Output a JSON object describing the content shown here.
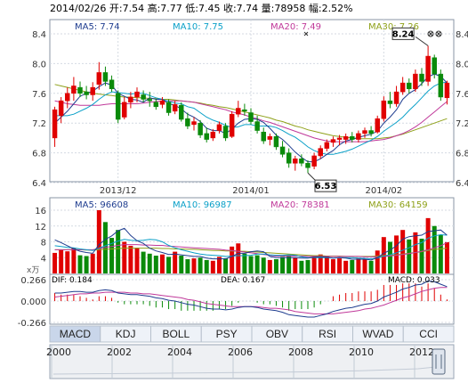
{
  "header": {
    "date": "2014/02/26",
    "quote_text": "2014/02/26 开:7.54 高:7.77 低:7.45 收:7.74 量:78958 幅:2.52%"
  },
  "price_panel": {
    "ma_labels": [
      {
        "text": "MA5: 7.74",
        "color": "#1f3d8f"
      },
      {
        "text": "MA10: 7.75",
        "color": "#0aa0c8"
      },
      {
        "text": "MA20: 7.49",
        "color": "#c0399a"
      },
      {
        "text": "MA30: 7.26",
        "color": "#8fa11a"
      }
    ],
    "y_ticks": [
      "8.4",
      "8.0",
      "7.6",
      "7.2",
      "6.8",
      "6.4"
    ],
    "y_values": [
      8.4,
      8.0,
      7.6,
      7.2,
      6.8,
      6.4
    ],
    "x_ticks": [
      "2013/12",
      "2014/01",
      "2014/02"
    ],
    "high_label": "8.24",
    "low_label": "6.53"
  },
  "volume_panel": {
    "ma_labels": [
      {
        "text": "MA5: 96608",
        "color": "#1f3d8f"
      },
      {
        "text": "MA10: 96987",
        "color": "#0aa0c8"
      },
      {
        "text": "MA20: 78381",
        "color": "#c0399a"
      },
      {
        "text": "MA30: 64159",
        "color": "#8fa11a"
      }
    ],
    "y_ticks": [
      "16",
      "12",
      "8",
      "4"
    ],
    "unit": "x万"
  },
  "macd_panel": {
    "dif_label": "DIF: 0.184",
    "dea_label": "DEA: 0.167",
    "macd_label": "MACD: 0.033",
    "y_ticks": [
      "0.266",
      "0.000",
      "-0.266"
    ]
  },
  "tabs": [
    "MACD",
    "KDJ",
    "BOLL",
    "PSY",
    "OBV",
    "RSI",
    "WVAD",
    "CCI"
  ],
  "active_tab": "MACD",
  "timeline": {
    "years": [
      "2000",
      "2002",
      "2004",
      "2006",
      "2008",
      "2010",
      "2012"
    ]
  },
  "colors": {
    "up": "#e00000",
    "down": "#0a8a0a",
    "ma5": "#1f3d8f",
    "ma10": "#0aa0c8",
    "ma20": "#c0399a",
    "ma30": "#8fa11a"
  },
  "chart_data": {
    "type": "candlestick",
    "candles": [
      {
        "o": 7.0,
        "h": 7.42,
        "l": 6.88,
        "c": 7.38
      },
      {
        "o": 7.3,
        "h": 7.55,
        "l": 7.2,
        "c": 7.5
      },
      {
        "o": 7.5,
        "h": 7.68,
        "l": 7.4,
        "c": 7.6
      },
      {
        "o": 7.6,
        "h": 7.82,
        "l": 7.5,
        "c": 7.7
      },
      {
        "o": 7.68,
        "h": 7.76,
        "l": 7.55,
        "c": 7.6
      },
      {
        "o": 7.62,
        "h": 7.7,
        "l": 7.52,
        "c": 7.58
      },
      {
        "o": 7.58,
        "h": 7.75,
        "l": 7.5,
        "c": 7.68
      },
      {
        "o": 7.72,
        "h": 8.02,
        "l": 7.65,
        "c": 7.88
      },
      {
        "o": 7.88,
        "h": 7.96,
        "l": 7.7,
        "c": 7.76
      },
      {
        "o": 7.78,
        "h": 7.84,
        "l": 7.62,
        "c": 7.66
      },
      {
        "o": 7.6,
        "h": 7.64,
        "l": 7.2,
        "c": 7.25
      },
      {
        "o": 7.28,
        "h": 7.55,
        "l": 7.25,
        "c": 7.48
      },
      {
        "o": 7.48,
        "h": 7.62,
        "l": 7.4,
        "c": 7.55
      },
      {
        "o": 7.55,
        "h": 7.68,
        "l": 7.48,
        "c": 7.62
      },
      {
        "o": 7.58,
        "h": 7.64,
        "l": 7.48,
        "c": 7.52
      },
      {
        "o": 7.52,
        "h": 7.62,
        "l": 7.42,
        "c": 7.5
      },
      {
        "o": 7.48,
        "h": 7.52,
        "l": 7.38,
        "c": 7.42
      },
      {
        "o": 7.45,
        "h": 7.55,
        "l": 7.4,
        "c": 7.5
      },
      {
        "o": 7.48,
        "h": 7.52,
        "l": 7.3,
        "c": 7.34
      },
      {
        "o": 7.36,
        "h": 7.5,
        "l": 7.32,
        "c": 7.45
      },
      {
        "o": 7.44,
        "h": 7.48,
        "l": 7.22,
        "c": 7.25
      },
      {
        "o": 7.26,
        "h": 7.34,
        "l": 7.12,
        "c": 7.16
      },
      {
        "o": 7.18,
        "h": 7.28,
        "l": 7.1,
        "c": 7.22
      },
      {
        "o": 7.2,
        "h": 7.24,
        "l": 7.0,
        "c": 7.04
      },
      {
        "o": 7.06,
        "h": 7.14,
        "l": 6.94,
        "c": 6.98
      },
      {
        "o": 7.0,
        "h": 7.12,
        "l": 6.96,
        "c": 7.08
      },
      {
        "o": 7.1,
        "h": 7.22,
        "l": 7.06,
        "c": 7.18
      },
      {
        "o": 7.16,
        "h": 7.2,
        "l": 6.96,
        "c": 7.0
      },
      {
        "o": 7.02,
        "h": 7.36,
        "l": 7.0,
        "c": 7.32
      },
      {
        "o": 7.32,
        "h": 7.5,
        "l": 7.28,
        "c": 7.4
      },
      {
        "o": 7.38,
        "h": 7.46,
        "l": 7.3,
        "c": 7.36
      },
      {
        "o": 7.34,
        "h": 7.4,
        "l": 7.18,
        "c": 7.22
      },
      {
        "o": 7.22,
        "h": 7.3,
        "l": 7.06,
        "c": 7.1
      },
      {
        "o": 7.08,
        "h": 7.14,
        "l": 6.92,
        "c": 6.96
      },
      {
        "o": 6.98,
        "h": 7.06,
        "l": 6.9,
        "c": 7.02
      },
      {
        "o": 7.02,
        "h": 7.06,
        "l": 6.84,
        "c": 6.88
      },
      {
        "o": 6.88,
        "h": 6.96,
        "l": 6.74,
        "c": 6.78
      },
      {
        "o": 6.8,
        "h": 6.86,
        "l": 6.6,
        "c": 6.66
      },
      {
        "o": 6.66,
        "h": 6.76,
        "l": 6.56,
        "c": 6.72
      },
      {
        "o": 6.72,
        "h": 6.78,
        "l": 6.62,
        "c": 6.66
      },
      {
        "o": 6.66,
        "h": 6.7,
        "l": 6.53,
        "c": 6.6
      },
      {
        "o": 6.62,
        "h": 6.8,
        "l": 6.58,
        "c": 6.76
      },
      {
        "o": 6.76,
        "h": 6.9,
        "l": 6.72,
        "c": 6.86
      },
      {
        "o": 6.86,
        "h": 6.98,
        "l": 6.82,
        "c": 6.94
      },
      {
        "o": 6.94,
        "h": 7.02,
        "l": 6.88,
        "c": 6.98
      },
      {
        "o": 6.98,
        "h": 7.04,
        "l": 6.9,
        "c": 7.0
      },
      {
        "o": 6.98,
        "h": 7.06,
        "l": 6.92,
        "c": 7.02
      },
      {
        "o": 7.02,
        "h": 7.08,
        "l": 6.94,
        "c": 6.98
      },
      {
        "o": 6.98,
        "h": 7.1,
        "l": 6.94,
        "c": 7.06
      },
      {
        "o": 7.06,
        "h": 7.14,
        "l": 7.0,
        "c": 7.1
      },
      {
        "o": 7.1,
        "h": 7.16,
        "l": 7.02,
        "c": 7.06
      },
      {
        "o": 7.08,
        "h": 7.3,
        "l": 7.06,
        "c": 7.26
      },
      {
        "o": 7.26,
        "h": 7.56,
        "l": 7.22,
        "c": 7.5
      },
      {
        "o": 7.5,
        "h": 7.62,
        "l": 7.4,
        "c": 7.46
      },
      {
        "o": 7.46,
        "h": 7.7,
        "l": 7.42,
        "c": 7.62
      },
      {
        "o": 7.62,
        "h": 7.82,
        "l": 7.58,
        "c": 7.74
      },
      {
        "o": 7.74,
        "h": 7.8,
        "l": 7.6,
        "c": 7.66
      },
      {
        "o": 7.66,
        "h": 7.92,
        "l": 7.62,
        "c": 7.86
      },
      {
        "o": 7.86,
        "h": 7.94,
        "l": 7.7,
        "c": 7.76
      },
      {
        "o": 7.76,
        "h": 8.24,
        "l": 7.7,
        "c": 8.1
      },
      {
        "o": 8.08,
        "h": 8.12,
        "l": 7.8,
        "c": 7.86
      },
      {
        "o": 7.86,
        "h": 7.92,
        "l": 7.5,
        "c": 7.55
      },
      {
        "o": 7.54,
        "h": 7.77,
        "l": 7.45,
        "c": 7.74
      }
    ],
    "volume": [
      5.2,
      6.0,
      5.6,
      6.4,
      4.6,
      4.4,
      5.0,
      16.0,
      13.0,
      9.0,
      11.0,
      8.0,
      7.0,
      6.5,
      5.5,
      5.0,
      4.5,
      4.8,
      4.2,
      5.5,
      4.5,
      3.6,
      3.8,
      4.0,
      3.4,
      3.2,
      4.2,
      3.8,
      6.8,
      7.6,
      5.0,
      4.4,
      4.6,
      4.0,
      3.4,
      3.6,
      4.2,
      4.6,
      4.0,
      3.2,
      3.4,
      4.4,
      4.8,
      4.4,
      3.6,
      3.8,
      3.2,
      3.4,
      3.8,
      3.6,
      3.2,
      5.8,
      9.2,
      8.0,
      9.6,
      11.0,
      8.6,
      10.4,
      8.8,
      14.0,
      12.0,
      9.8,
      7.9
    ],
    "ma": {
      "ma5": [
        7.2,
        7.28,
        7.36,
        7.46,
        7.56,
        7.6,
        7.63,
        7.69,
        7.74,
        7.71,
        7.6,
        7.56,
        7.52,
        7.51,
        7.48,
        7.54,
        7.52,
        7.52,
        7.46,
        7.44,
        7.39,
        7.32,
        7.28,
        7.22,
        7.13,
        7.1,
        7.1,
        7.06,
        7.12,
        7.2,
        7.25,
        7.26,
        7.25,
        7.21,
        7.13,
        7.04,
        6.98,
        6.9,
        6.81,
        6.74,
        6.68,
        6.68,
        6.72,
        6.78,
        6.83,
        6.91,
        6.96,
        6.98,
        7.01,
        7.03,
        7.05,
        7.09,
        7.2,
        7.28,
        7.38,
        7.52,
        7.6,
        7.65,
        7.73,
        7.82,
        7.86,
        7.83,
        7.74
      ],
      "ma10": [
        7.3,
        7.3,
        7.3,
        7.32,
        7.36,
        7.4,
        7.45,
        7.52,
        7.58,
        7.62,
        7.61,
        7.6,
        7.59,
        7.6,
        7.6,
        7.57,
        7.54,
        7.52,
        7.49,
        7.47,
        7.46,
        7.42,
        7.4,
        7.34,
        7.28,
        7.24,
        7.21,
        7.17,
        7.14,
        7.15,
        7.18,
        7.18,
        7.16,
        7.16,
        7.16,
        7.14,
        7.1,
        7.05,
        7.01,
        6.95,
        6.88,
        6.83,
        6.8,
        6.78,
        6.78,
        6.8,
        6.82,
        6.85,
        6.89,
        6.93,
        6.97,
        7.02,
        7.09,
        7.15,
        7.21,
        7.28,
        7.37,
        7.45,
        7.54,
        7.63,
        7.7,
        7.74,
        7.75
      ],
      "ma20": [
        7.5,
        7.48,
        7.46,
        7.45,
        7.44,
        7.44,
        7.44,
        7.44,
        7.45,
        7.46,
        7.46,
        7.46,
        7.46,
        7.46,
        7.47,
        7.48,
        7.49,
        7.5,
        7.5,
        7.5,
        7.5,
        7.49,
        7.48,
        7.46,
        7.44,
        7.42,
        7.4,
        7.38,
        7.35,
        7.33,
        7.31,
        7.28,
        7.26,
        7.23,
        7.21,
        7.18,
        7.15,
        7.12,
        7.09,
        7.06,
        7.03,
        7.0,
        6.98,
        6.96,
        6.95,
        6.95,
        6.95,
        6.95,
        6.95,
        6.95,
        6.96,
        6.97,
        6.98,
        7.0,
        7.03,
        7.06,
        7.1,
        7.15,
        7.21,
        7.28,
        7.35,
        7.42,
        7.49
      ],
      "ma30": [
        7.72,
        7.7,
        7.68,
        7.66,
        7.64,
        7.62,
        7.6,
        7.59,
        7.58,
        7.57,
        7.56,
        7.55,
        7.55,
        7.54,
        7.54,
        7.53,
        7.53,
        7.52,
        7.52,
        7.51,
        7.5,
        7.49,
        7.48,
        7.47,
        7.45,
        7.44,
        7.42,
        7.41,
        7.39,
        7.37,
        7.35,
        7.33,
        7.31,
        7.29,
        7.27,
        7.24,
        7.22,
        7.19,
        7.16,
        7.14,
        7.11,
        7.09,
        7.07,
        7.05,
        7.03,
        7.02,
        7.01,
        7.0,
        6.99,
        6.99,
        6.99,
        6.99,
        7.0,
        7.01,
        7.03,
        7.05,
        7.08,
        7.11,
        7.14,
        7.17,
        7.2,
        7.23,
        7.26
      ]
    },
    "volume_ma": {
      "ma5": [
        8.5,
        7.8,
        7.0,
        6.2,
        5.6,
        5.3,
        5.1,
        7.3,
        8.6,
        9.5,
        10.8,
        11.4,
        9.6,
        8.3,
        7.6,
        6.4,
        5.7,
        5.3,
        4.8,
        4.9,
        4.7,
        4.5,
        4.3,
        4.3,
        3.9,
        3.7,
        3.7,
        3.7,
        4.3,
        5.1,
        5.1,
        5.5,
        5.7,
        5.5,
        4.3,
        4.0,
        4.0,
        4.0,
        4.0,
        3.9,
        3.9,
        4.1,
        4.2,
        4.1,
        3.9,
        4.0,
        3.9,
        3.6,
        3.6,
        3.6,
        3.4,
        4.0,
        5.1,
        5.9,
        7.0,
        8.7,
        9.3,
        9.5,
        9.7,
        10.6,
        10.8,
        11.0,
        9.7
      ],
      "ma10": [
        7.0,
        6.8,
        6.6,
        6.5,
        6.2,
        6.0,
        5.8,
        6.4,
        7.0,
        7.6,
        8.2,
        8.6,
        8.4,
        8.3,
        8.4,
        8.6,
        8.5,
        8.0,
        7.1,
        6.5,
        6.0,
        5.6,
        5.2,
        4.9,
        4.7,
        4.6,
        4.5,
        4.3,
        4.4,
        4.5,
        4.5,
        4.6,
        4.9,
        4.9,
        4.7,
        4.6,
        4.6,
        4.7,
        4.6,
        4.2,
        4.0,
        4.0,
        4.0,
        4.0,
        3.9,
        4.0,
        4.0,
        4.0,
        3.9,
        3.8,
        3.7,
        3.9,
        4.4,
        4.7,
        5.2,
        5.9,
        6.5,
        7.3,
        7.8,
        8.9,
        9.5,
        9.8,
        9.7
      ],
      "ma20": [
        6.0,
        6.0,
        6.0,
        6.0,
        6.0,
        6.0,
        6.0,
        6.3,
        6.6,
        6.8,
        7.1,
        7.3,
        7.3,
        7.3,
        7.2,
        7.2,
        7.1,
        7.1,
        6.9,
        6.8,
        6.7,
        6.6,
        6.5,
        6.4,
        6.3,
        6.2,
        6.1,
        5.9,
        5.8,
        5.6,
        5.4,
        5.2,
        5.0,
        4.8,
        4.6,
        4.4,
        4.4,
        4.4,
        4.4,
        4.4,
        4.3,
        4.3,
        4.3,
        4.3,
        4.3,
        4.3,
        4.3,
        4.3,
        4.3,
        4.2,
        4.2,
        4.2,
        4.3,
        4.4,
        4.6,
        4.8,
        5.0,
        5.3,
        5.6,
        6.0,
        6.5,
        7.0,
        7.8
      ],
      "ma30": [
        6.0,
        6.0,
        6.0,
        6.0,
        6.0,
        5.9,
        5.9,
        6.0,
        6.1,
        6.2,
        6.3,
        6.4,
        6.4,
        6.4,
        6.4,
        6.4,
        6.4,
        6.3,
        6.3,
        6.2,
        6.2,
        6.1,
        6.1,
        6.0,
        5.9,
        5.8,
        5.8,
        5.7,
        5.7,
        5.6,
        5.6,
        5.5,
        5.4,
        5.3,
        5.2,
        5.1,
        5.0,
        4.9,
        4.8,
        4.7,
        4.6,
        4.5,
        4.5,
        4.4,
        4.4,
        4.4,
        4.3,
        4.3,
        4.3,
        4.3,
        4.3,
        4.4,
        4.5,
        4.6,
        4.7,
        4.9,
        5.1,
        5.3,
        5.5,
        5.8,
        6.1,
        6.2,
        6.4
      ]
    },
    "macd": {
      "dif": [
        0.1,
        0.1,
        0.11,
        0.12,
        0.12,
        0.11,
        0.11,
        0.13,
        0.14,
        0.13,
        0.1,
        0.09,
        0.08,
        0.08,
        0.07,
        0.06,
        0.04,
        0.03,
        0.01,
        0.0,
        -0.02,
        -0.04,
        -0.05,
        -0.07,
        -0.09,
        -0.1,
        -0.1,
        -0.11,
        -0.1,
        -0.08,
        -0.07,
        -0.07,
        -0.08,
        -0.1,
        -0.11,
        -0.12,
        -0.14,
        -0.17,
        -0.18,
        -0.19,
        -0.2,
        -0.2,
        -0.18,
        -0.16,
        -0.13,
        -0.11,
        -0.09,
        -0.08,
        -0.06,
        -0.04,
        -0.03,
        0.0,
        0.05,
        0.08,
        0.11,
        0.15,
        0.17,
        0.2,
        0.21,
        0.25,
        0.24,
        0.21,
        0.18
      ],
      "dea": [
        0.05,
        0.06,
        0.07,
        0.08,
        0.09,
        0.09,
        0.1,
        0.1,
        0.11,
        0.11,
        0.11,
        0.11,
        0.1,
        0.1,
        0.09,
        0.09,
        0.08,
        0.07,
        0.06,
        0.05,
        0.04,
        0.02,
        0.01,
        -0.01,
        -0.03,
        -0.04,
        -0.05,
        -0.06,
        -0.07,
        -0.07,
        -0.07,
        -0.07,
        -0.07,
        -0.08,
        -0.09,
        -0.09,
        -0.1,
        -0.11,
        -0.13,
        -0.14,
        -0.15,
        -0.16,
        -0.16,
        -0.16,
        -0.16,
        -0.15,
        -0.14,
        -0.13,
        -0.12,
        -0.1,
        -0.09,
        -0.07,
        -0.05,
        -0.02,
        0.01,
        0.04,
        0.06,
        0.09,
        0.12,
        0.14,
        0.16,
        0.17,
        0.17
      ]
    },
    "ylim_price": [
      6.4,
      8.4
    ],
    "ylim_volume": [
      0,
      16
    ],
    "ylim_macd": [
      -0.266,
      0.266
    ]
  }
}
